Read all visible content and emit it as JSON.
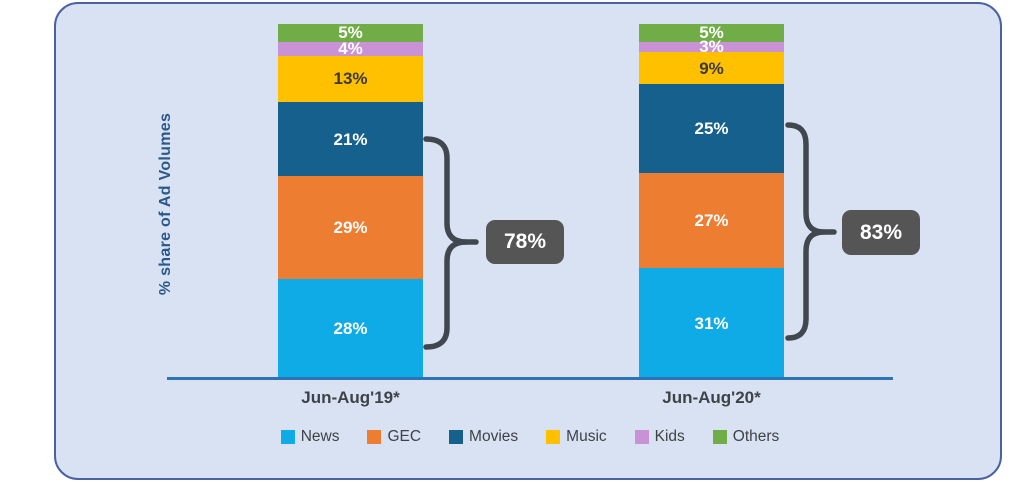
{
  "chart_data": {
    "type": "bar",
    "variant": "stacked-column",
    "title": "",
    "ylabel": "% share of Ad Volumes",
    "xlabel": "",
    "categories": [
      "Jun-Aug'19*",
      "Jun-Aug'20*"
    ],
    "series": [
      {
        "name": "News",
        "values": [
          28,
          31
        ],
        "color": "#0FABE6",
        "label_color": "#FFFFFF"
      },
      {
        "name": "GEC",
        "values": [
          29,
          27
        ],
        "color": "#ED7D31",
        "label_color": "#FFFFFF"
      },
      {
        "name": "Movies",
        "values": [
          21,
          25
        ],
        "color": "#16608E",
        "label_color": "#FFFFFF"
      },
      {
        "name": "Music",
        "values": [
          13,
          9
        ],
        "color": "#FFC000",
        "label_color": "#3A3A3A"
      },
      {
        "name": "Kids",
        "values": [
          4,
          3
        ],
        "color": "#C992D6",
        "label_color": "#FFFFFF"
      },
      {
        "name": "Others",
        "values": [
          5,
          5
        ],
        "color": "#70AD47",
        "label_color": "#FFFFFF"
      }
    ],
    "stack_order_top_to_bottom": [
      "Others",
      "Kids",
      "Music",
      "Movies",
      "GEC",
      "News"
    ],
    "annotations": [
      {
        "label": "78%",
        "category": "Jun-Aug'19*",
        "covers": [
          "News",
          "GEC",
          "Movies"
        ]
      },
      {
        "label": "83%",
        "category": "Jun-Aug'20*",
        "covers": [
          "News",
          "GEC",
          "Movies"
        ]
      }
    ],
    "value_suffix": "%",
    "legend_position": "bottom",
    "ylim": [
      0,
      100
    ],
    "grid": false
  },
  "colors": {
    "panel_background": "#D9E2F3",
    "panel_border": "#4A63A0",
    "axis_line": "#2E74B5",
    "callout_background": "#555555",
    "callout_text": "#FFFFFF",
    "brace": "#41474E",
    "category_label_text": "#3E4347",
    "ylabel_text": "#2B578A"
  }
}
